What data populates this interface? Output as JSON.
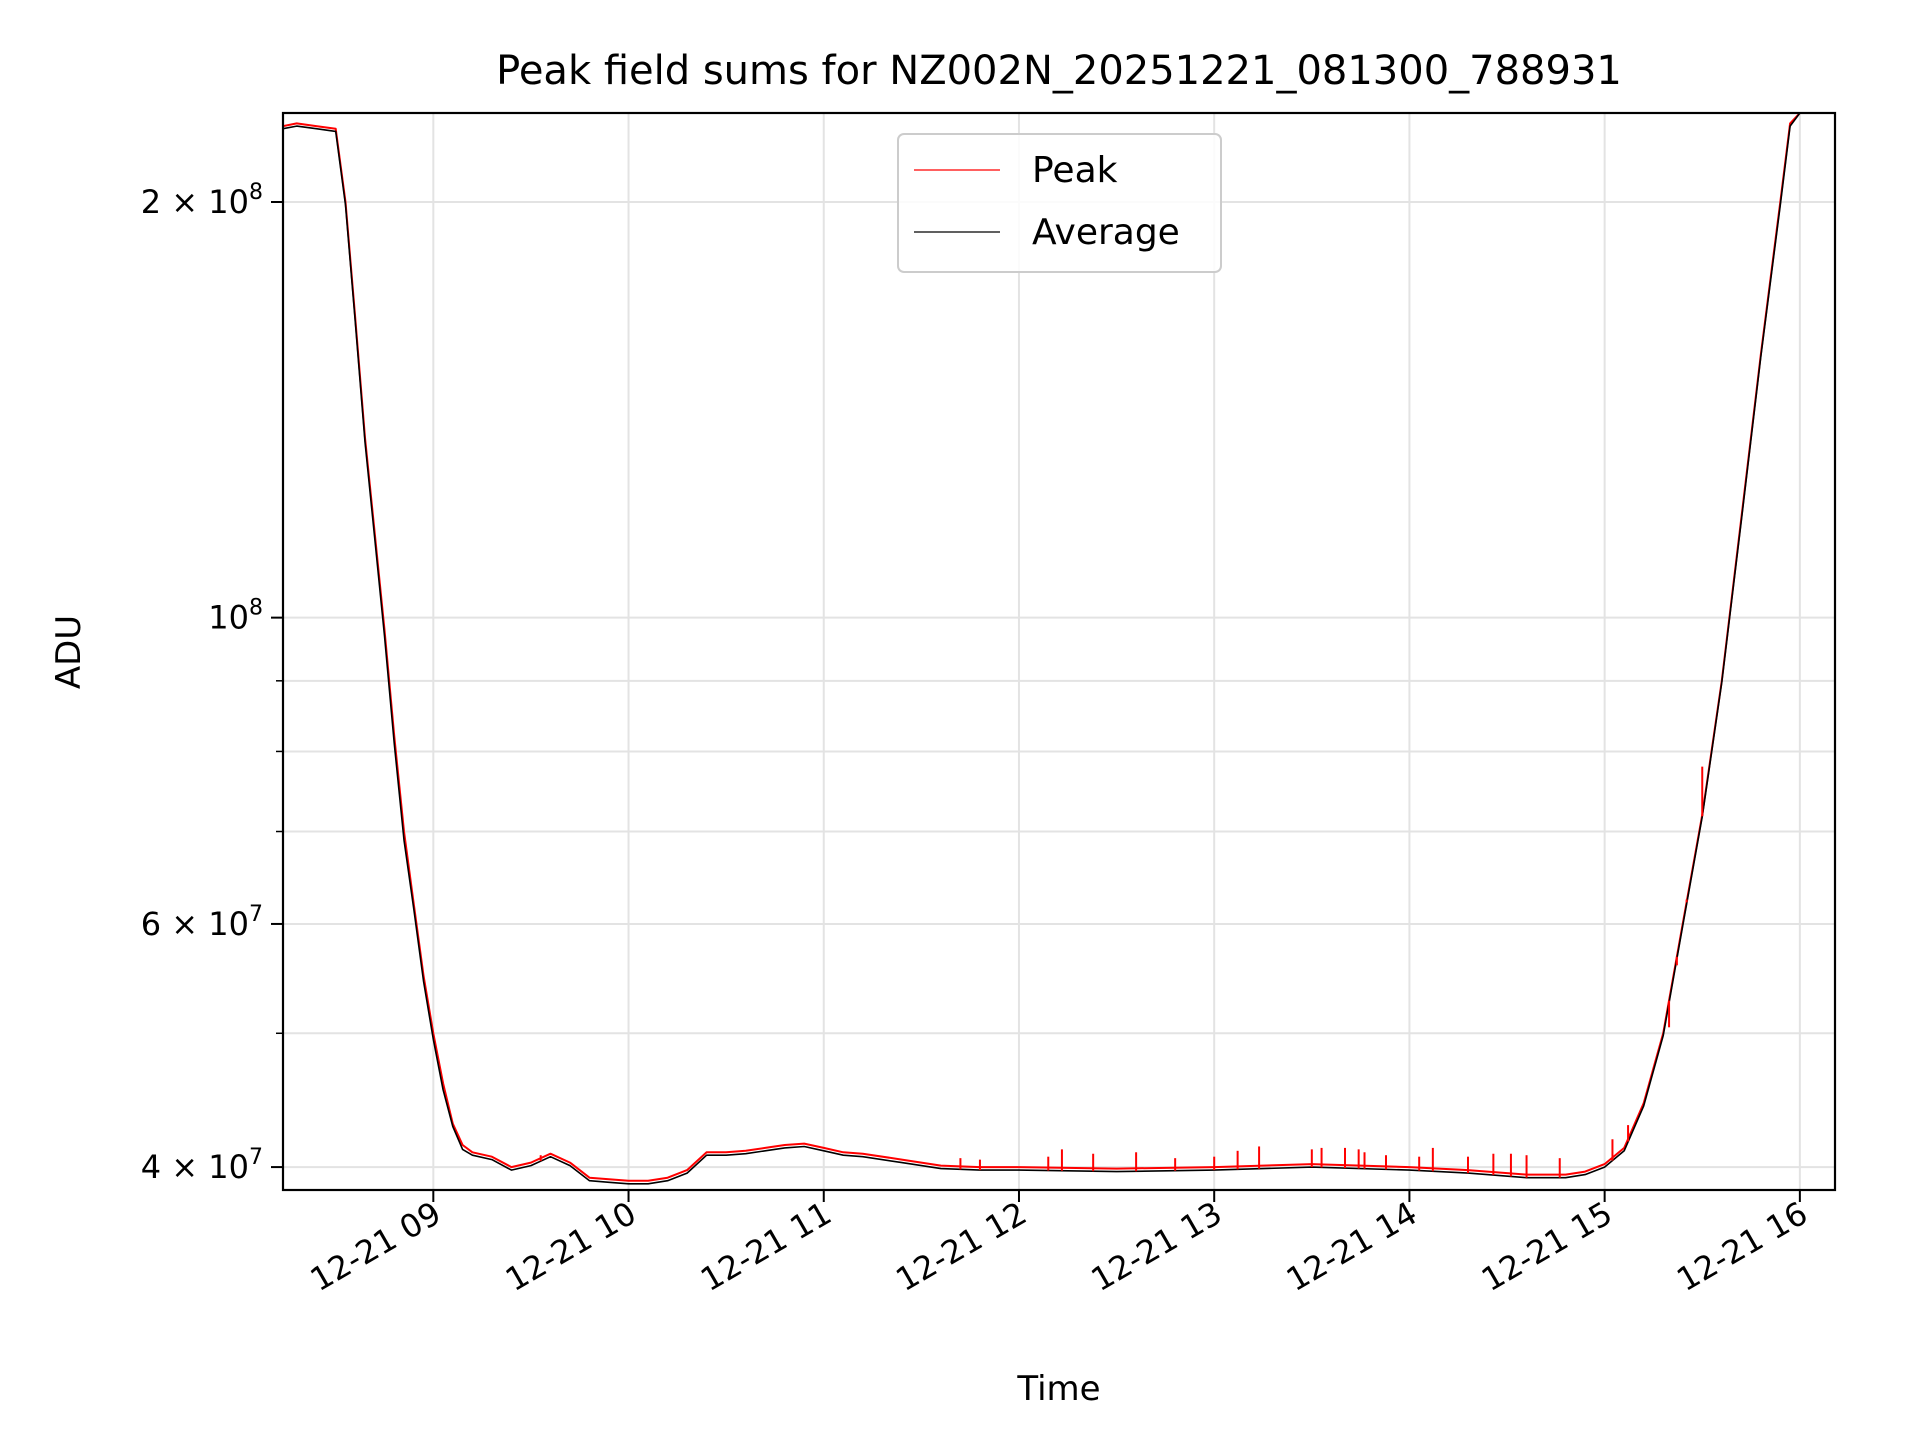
{
  "chart_data": {
    "type": "line",
    "title": "Peak field sums for NZ002N_20251221_081300_788931",
    "xlabel": "Time",
    "ylabel": "ADU",
    "yscale": "log",
    "grid": true,
    "legend_position": "upper-center",
    "x_unit": "hours since 12-21 08:00",
    "xlim": [
      8.23,
      16.18
    ],
    "ylim": [
      38500000,
      232000000
    ],
    "x_ticks": [
      {
        "value": 9,
        "label": "12-21 09"
      },
      {
        "value": 10,
        "label": "12-21 10"
      },
      {
        "value": 11,
        "label": "12-21 11"
      },
      {
        "value": 12,
        "label": "12-21 12"
      },
      {
        "value": 13,
        "label": "12-21 13"
      },
      {
        "value": 14,
        "label": "12-21 14"
      },
      {
        "value": 15,
        "label": "12-21 15"
      },
      {
        "value": 16,
        "label": "12-21 16"
      }
    ],
    "y_ticks_major": [
      {
        "value": 40000000,
        "mantissa": "4 × 10",
        "exp": "7"
      },
      {
        "value": 60000000,
        "mantissa": "6 × 10",
        "exp": "7"
      },
      {
        "value": 100000000,
        "mantissa": "10",
        "exp": "8"
      },
      {
        "value": 200000000,
        "mantissa": "2 × 10",
        "exp": "8"
      }
    ],
    "y_ticks_minor": [
      50000000,
      70000000,
      80000000,
      90000000
    ],
    "series": [
      {
        "name": "Peak",
        "color": "#ff0000",
        "x": [
          8.23,
          8.3,
          8.4,
          8.5,
          8.55,
          8.6,
          8.65,
          8.7,
          8.75,
          8.8,
          8.85,
          8.9,
          8.95,
          9.0,
          9.05,
          9.1,
          9.15,
          9.2,
          9.3,
          9.4,
          9.5,
          9.6,
          9.7,
          9.8,
          9.9,
          10.0,
          10.1,
          10.2,
          10.3,
          10.4,
          10.5,
          10.6,
          10.7,
          10.8,
          10.9,
          11.0,
          11.1,
          11.2,
          11.4,
          11.6,
          11.8,
          12.0,
          12.5,
          13.0,
          13.5,
          14.0,
          14.3,
          14.6,
          14.8,
          14.9,
          15.0,
          15.1,
          15.2,
          15.3,
          15.4,
          15.5,
          15.6,
          15.7,
          15.8,
          15.9,
          15.95,
          16.0
        ],
        "values": [
          227000000,
          228000000,
          227000000,
          226000000,
          200000000,
          165000000,
          135000000,
          115000000,
          98000000,
          82000000,
          70000000,
          62000000,
          55000000,
          50000000,
          46000000,
          43000000,
          41500000,
          41000000,
          40700000,
          40000000,
          40300000,
          40900000,
          40300000,
          39300000,
          39200000,
          39100000,
          39100000,
          39300000,
          39800000,
          41000000,
          41000000,
          41100000,
          41300000,
          41500000,
          41600000,
          41300000,
          41000000,
          40900000,
          40500000,
          40100000,
          40000000,
          40000000,
          39900000,
          40000000,
          40200000,
          40000000,
          39800000,
          39500000,
          39500000,
          39700000,
          40200000,
          41300000,
          44500000,
          50000000,
          60000000,
          72000000,
          90000000,
          118000000,
          155000000,
          200000000,
          228000000,
          232000000
        ]
      },
      {
        "name": "Average",
        "color": "#000000",
        "x": [
          8.23,
          8.3,
          8.4,
          8.5,
          8.55,
          8.6,
          8.65,
          8.7,
          8.75,
          8.8,
          8.85,
          8.9,
          8.95,
          9.0,
          9.05,
          9.1,
          9.15,
          9.2,
          9.3,
          9.4,
          9.5,
          9.6,
          9.7,
          9.8,
          9.9,
          10.0,
          10.1,
          10.2,
          10.3,
          10.4,
          10.5,
          10.6,
          10.7,
          10.8,
          10.9,
          11.0,
          11.1,
          11.2,
          11.4,
          11.6,
          11.8,
          12.0,
          12.5,
          13.0,
          13.5,
          14.0,
          14.3,
          14.6,
          14.8,
          14.9,
          15.0,
          15.1,
          15.2,
          15.3,
          15.4,
          15.5,
          15.6,
          15.7,
          15.8,
          15.9,
          15.95,
          16.0
        ],
        "values": [
          226000000,
          227000000,
          226000000,
          225000000,
          199000000,
          164000000,
          134000000,
          114000000,
          97000000,
          81000000,
          69000000,
          61500000,
          54500000,
          49500000,
          45500000,
          42800000,
          41200000,
          40800000,
          40500000,
          39800000,
          40100000,
          40700000,
          40100000,
          39100000,
          39000000,
          38900000,
          38900000,
          39100000,
          39600000,
          40800000,
          40800000,
          40900000,
          41100000,
          41300000,
          41400000,
          41100000,
          40800000,
          40700000,
          40300000,
          39900000,
          39800000,
          39800000,
          39700000,
          39800000,
          40000000,
          39800000,
          39600000,
          39300000,
          39300000,
          39500000,
          40000000,
          41100000,
          44300000,
          49800000,
          59800000,
          71800000,
          89800000,
          117500000,
          154500000,
          199000000,
          227000000,
          232000000
        ]
      }
    ],
    "peak_spikes": [
      {
        "x": 9.55,
        "value": 40800000
      },
      {
        "x": 11.7,
        "value": 40600000
      },
      {
        "x": 11.8,
        "value": 40500000
      },
      {
        "x": 12.15,
        "value": 40700000
      },
      {
        "x": 12.22,
        "value": 41200000
      },
      {
        "x": 12.38,
        "value": 40900000
      },
      {
        "x": 12.6,
        "value": 41000000
      },
      {
        "x": 12.8,
        "value": 40600000
      },
      {
        "x": 13.0,
        "value": 40700000
      },
      {
        "x": 13.12,
        "value": 41100000
      },
      {
        "x": 13.23,
        "value": 41400000
      },
      {
        "x": 13.5,
        "value": 41200000
      },
      {
        "x": 13.55,
        "value": 41300000
      },
      {
        "x": 13.67,
        "value": 41300000
      },
      {
        "x": 13.74,
        "value": 41200000
      },
      {
        "x": 13.77,
        "value": 41000000
      },
      {
        "x": 13.88,
        "value": 40800000
      },
      {
        "x": 14.05,
        "value": 40700000
      },
      {
        "x": 14.12,
        "value": 41300000
      },
      {
        "x": 14.3,
        "value": 40700000
      },
      {
        "x": 14.43,
        "value": 40900000
      },
      {
        "x": 14.52,
        "value": 40900000
      },
      {
        "x": 14.6,
        "value": 40800000
      },
      {
        "x": 14.77,
        "value": 40600000
      },
      {
        "x": 15.04,
        "value": 41900000
      },
      {
        "x": 15.12,
        "value": 42900000
      },
      {
        "x": 15.33,
        "value": 50500000
      },
      {
        "x": 15.37,
        "value": 56000000
      },
      {
        "x": 15.42,
        "value": 62500000
      },
      {
        "x": 15.5,
        "value": 78000000
      }
    ]
  }
}
